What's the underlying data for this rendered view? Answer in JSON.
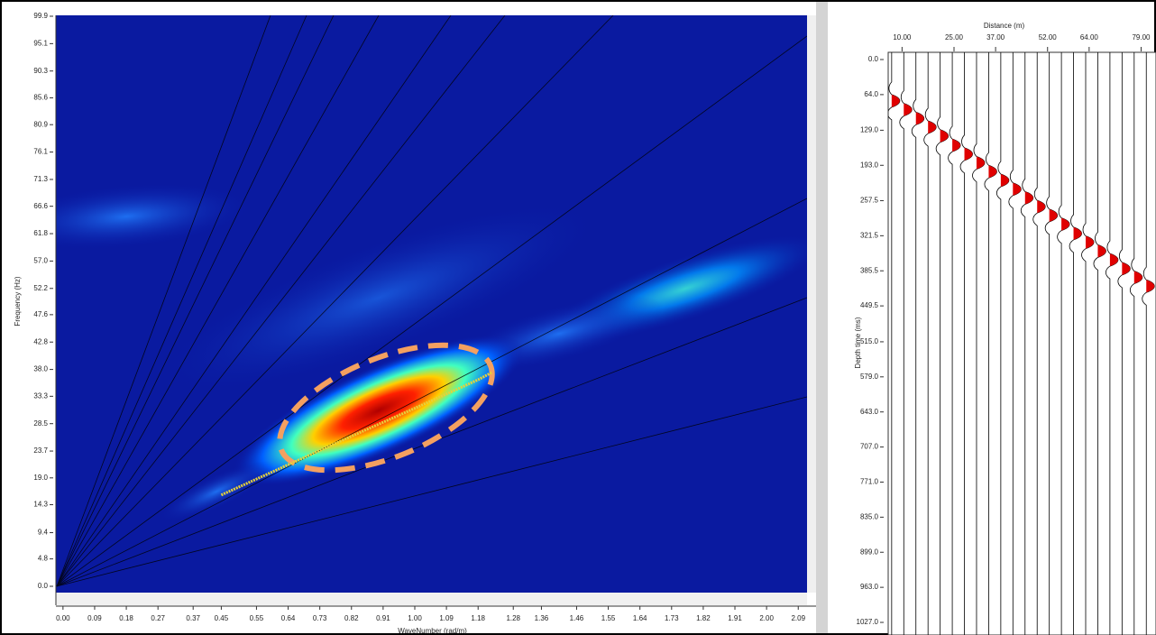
{
  "chart_data": [
    {
      "type": "line",
      "xlabel": "WaveNumber (rad/m)",
      "ylabel": "Frequency (Hz)",
      "x": [
        0.45,
        0.64,
        0.82,
        1.0,
        1.18,
        1.22
      ],
      "values": [
        16,
        21.3,
        26.3,
        31.2,
        36.2,
        37.5
      ],
      "color": "#e6d23a",
      "xlim": [
        -0.015,
        2.115
      ],
      "ylim": [
        0,
        99.9
      ],
      "xticks": [
        {
          "value": 0,
          "label": "0.00"
        },
        0.09,
        0.18,
        0.27,
        0.37,
        0.45,
        0.55,
        0.64,
        0.73,
        0.82,
        0.91,
        {
          "value": 1,
          "label": "1.00"
        },
        1.09,
        1.18,
        1.28,
        1.36,
        1.46,
        1.55,
        1.64,
        1.73,
        1.82,
        1.91,
        {
          "value": 2,
          "label": "2.00"
        },
        2.09
      ],
      "yticks": [
        99.9,
        95.1,
        90.3,
        85.6,
        80.9,
        76.1,
        71.3,
        66.6,
        61.8,
        {
          "value": 57,
          "label": "57.0"
        },
        52.2,
        47.6,
        42.8,
        {
          "value": 38,
          "label": "38.0"
        },
        33.3,
        28.5,
        23.7,
        {
          "value": 19,
          "label": "19.0"
        },
        14.3,
        9.4,
        4.8,
        {
          "value": 0,
          "label": "0.0"
        }
      ]
    },
    {
      "type": "wiggle",
      "xlabel": "Distance (m)",
      "ylabel": "Depth time (ms)",
      "color": "#e00000",
      "x": [
        7,
        10.5,
        14,
        17.5,
        21,
        24.5,
        28,
        31.5,
        35,
        38.5,
        42,
        45.5,
        49,
        52.5,
        56,
        59.5,
        63,
        66.5,
        70,
        73.5,
        77,
        80.5
      ],
      "values": [
        64,
        80,
        96,
        112,
        128,
        145,
        161,
        177,
        193,
        209,
        225,
        241,
        257,
        273,
        289,
        306,
        322,
        338,
        354,
        370,
        386,
        402
      ],
      "xlim": [
        6,
        83.3
      ],
      "ylim": [
        0,
        1050
      ],
      "xticks": [
        {
          "value": 10,
          "label": "10.00"
        },
        {
          "value": 25,
          "label": "25.00"
        },
        {
          "value": 37,
          "label": "37.00"
        },
        {
          "value": 52,
          "label": "52.00"
        },
        {
          "value": 64,
          "label": "64.00"
        },
        {
          "value": 79,
          "label": "79.00"
        }
      ],
      "yticks": [
        {
          "value": 0,
          "label": "0.0"
        },
        {
          "value": 64,
          "label": "64.0"
        },
        {
          "value": 129,
          "label": "129.0"
        },
        {
          "value": 193,
          "label": "193.0"
        },
        257.5,
        321.5,
        385.5,
        449.5,
        {
          "value": 515,
          "label": "515.0"
        },
        {
          "value": 579,
          "label": "579.0"
        },
        {
          "value": 643,
          "label": "643.0"
        },
        {
          "value": 707,
          "label": "707.0"
        },
        {
          "value": 771,
          "label": "771.0"
        },
        {
          "value": 835,
          "label": "835.0"
        },
        {
          "value": 899,
          "label": "899.0"
        },
        {
          "value": 963,
          "label": "963.0"
        },
        {
          "value": 1027,
          "label": "1027.0"
        }
      ]
    }
  ]
}
